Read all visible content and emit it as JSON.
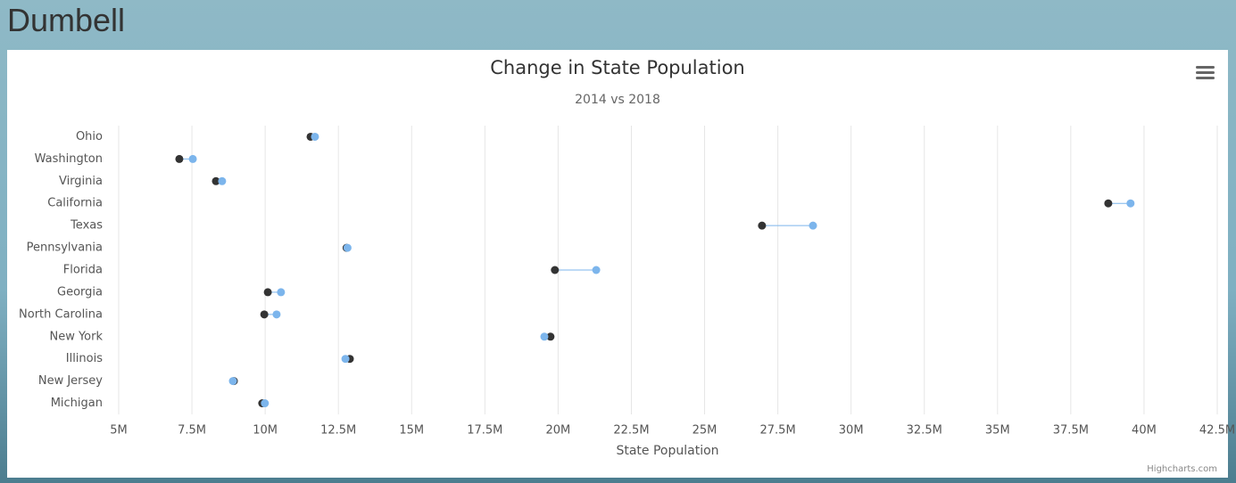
{
  "page_title": "Dumbell",
  "chart_data": {
    "type": "dumbbell",
    "title": "Change in State Population",
    "subtitle": "2014 vs 2018",
    "x_label": "State Population",
    "credits": "Highcharts.com",
    "categories": [
      "Ohio",
      "Washington",
      "Virginia",
      "California",
      "Texas",
      "Pennsylvania",
      "Florida",
      "Georgia",
      "North Carolina",
      "New York",
      "Illinois",
      "New Jersey",
      "Michigan"
    ],
    "series": [
      {
        "color": "#333333",
        "values": [
          11550000,
          7070000,
          8320000,
          38780000,
          26960000,
          12780000,
          19890000,
          10090000,
          9970000,
          19740000,
          12890000,
          8930000,
          9900000
        ]
      },
      {
        "color": "#7cb5ec",
        "values": [
          11700000,
          7530000,
          8530000,
          39540000,
          28700000,
          12810000,
          21300000,
          10540000,
          10390000,
          19530000,
          12740000,
          8900000,
          9990000
        ]
      }
    ],
    "connector_color": "#7cb5ec",
    "xlim": [
      5000000,
      42500000
    ],
    "xticks": [
      {
        "value": 5000000,
        "label": "5M"
      },
      {
        "value": 7500000,
        "label": "7.5M"
      },
      {
        "value": 10000000,
        "label": "10M"
      },
      {
        "value": 12500000,
        "label": "12.5M"
      },
      {
        "value": 15000000,
        "label": "15M"
      },
      {
        "value": 17500000,
        "label": "17.5M"
      },
      {
        "value": 20000000,
        "label": "20M"
      },
      {
        "value": 22500000,
        "label": "22.5M"
      },
      {
        "value": 25000000,
        "label": "25M"
      },
      {
        "value": 27500000,
        "label": "27.5M"
      },
      {
        "value": 30000000,
        "label": "30M"
      },
      {
        "value": 32500000,
        "label": "32.5M"
      },
      {
        "value": 35000000,
        "label": "35M"
      },
      {
        "value": 37500000,
        "label": "37.5M"
      },
      {
        "value": 40000000,
        "label": "40M"
      },
      {
        "value": 42500000,
        "label": "42.5M"
      }
    ],
    "grid": true
  }
}
